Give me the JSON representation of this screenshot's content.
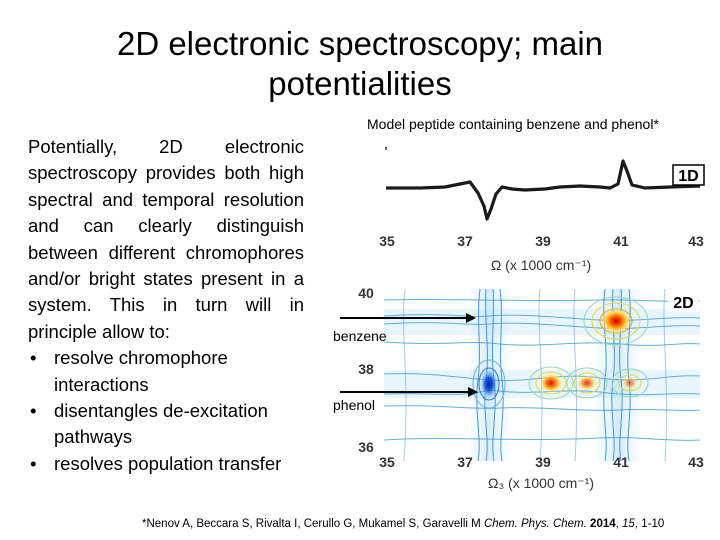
{
  "slide": {
    "title": "2D electronic spectroscopy; main potentialities",
    "intro": "Potentially, 2D electronic spectroscopy provides both high spectral and temporal resolution and can clearly distinguish between different chromophores and/or bright states present in a system. This in turn will in principle allow to:",
    "bullets": [
      "resolve chromophore interactions",
      "disentangles de-excitation pathways",
      "resolves population transfer"
    ]
  },
  "figure": {
    "caption": "Model peptide containing benzene and phenol*",
    "panel_1d": {
      "badge": "1D",
      "x_ticks": [
        "35",
        "37",
        "39",
        "41",
        "43"
      ],
      "x_label": "Ω (x 1000 cm⁻¹)"
    },
    "panel_2d": {
      "badge": "2D",
      "x_ticks": [
        "35",
        "37",
        "39",
        "41",
        "43"
      ],
      "y_ticks": [
        "40",
        "38",
        "36"
      ],
      "x_label": "Ω₃ (x 1000 cm⁻¹)",
      "annotations": [
        "benzene",
        "phenol"
      ]
    }
  },
  "citation": {
    "authors": "*Nenov A, Beccara S, Rivalta I, Cerullo G, Mukamel S, Garavelli M ",
    "journal": "Chem. Phys. Chem.",
    "year": "2014",
    "volume": "15",
    "pages": "1-10"
  },
  "colors": {
    "text": "#000000",
    "contour_cool": "#3a8fd6",
    "contour_warm": "#f2b233",
    "hotspot": "#d81e05"
  }
}
